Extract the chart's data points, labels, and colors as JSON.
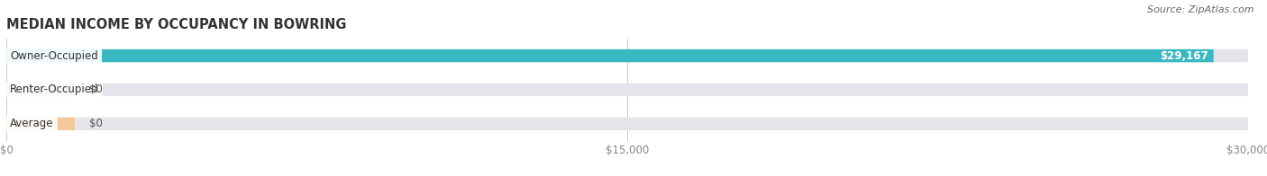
{
  "title": "MEDIAN INCOME BY OCCUPANCY IN BOWRING",
  "source": "Source: ZipAtlas.com",
  "categories": [
    "Owner-Occupied",
    "Renter-Occupied",
    "Average"
  ],
  "values": [
    29167,
    0,
    0
  ],
  "bar_colors": [
    "#39b8c2",
    "#b89fc8",
    "#f5c899"
  ],
  "bar_bg_color": "#e4e4ea",
  "label_colors": [
    "#ffffff",
    "#555555",
    "#555555"
  ],
  "value_labels": [
    "$29,167",
    "$0",
    "$0"
  ],
  "xlim": [
    0,
    30000
  ],
  "xticks": [
    0,
    15000,
    30000
  ],
  "xticklabels": [
    "$0",
    "$15,000",
    "$30,000"
  ],
  "bg_color": "#ffffff",
  "title_fontsize": 10.5,
  "bar_label_fontsize": 8.5,
  "tick_fontsize": 8.5,
  "source_fontsize": 8,
  "bar_height": 0.38,
  "bar_gap": 0.62,
  "fig_width": 14.06,
  "fig_height": 1.96
}
